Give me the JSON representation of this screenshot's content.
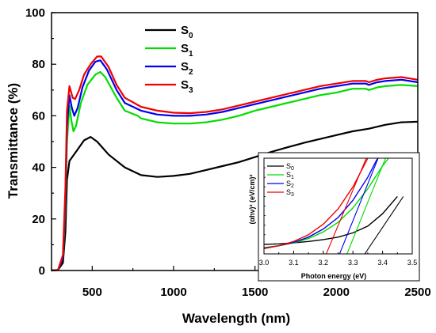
{
  "chart_data": [
    {
      "type": "line",
      "xlabel": "Wavelength (nm)",
      "ylabel": "Transmittance (%)",
      "xlim": [
        250,
        2500
      ],
      "ylim": [
        0,
        100
      ],
      "x_ticks": [
        500,
        1000,
        1500,
        2000,
        2500
      ],
      "y_ticks": [
        0,
        20,
        40,
        60,
        80,
        100
      ],
      "grid": false,
      "legend_position": "top-left",
      "series": [
        {
          "name": "S0",
          "legend_base": "S",
          "legend_sub": "0",
          "color": "#000000",
          "points": [
            [
              250,
              0
            ],
            [
              290,
              0.2
            ],
            [
              320,
              3
            ],
            [
              335,
              15
            ],
            [
              345,
              35
            ],
            [
              360,
              42.5
            ],
            [
              400,
              46
            ],
            [
              450,
              50.5
            ],
            [
              490,
              51.8
            ],
            [
              530,
              50
            ],
            [
              600,
              45
            ],
            [
              700,
              40
            ],
            [
              800,
              37
            ],
            [
              900,
              36.3
            ],
            [
              1000,
              36.7
            ],
            [
              1100,
              37.5
            ],
            [
              1200,
              39
            ],
            [
              1300,
              40.5
            ],
            [
              1400,
              42
            ],
            [
              1500,
              44
            ],
            [
              1600,
              46
            ],
            [
              1700,
              47.8
            ],
            [
              1800,
              49.5
            ],
            [
              1900,
              51
            ],
            [
              2000,
              52.5
            ],
            [
              2100,
              54
            ],
            [
              2200,
              55
            ],
            [
              2300,
              56.5
            ],
            [
              2400,
              57.5
            ],
            [
              2500,
              57.7
            ]
          ]
        },
        {
          "name": "S1",
          "legend_base": "S",
          "legend_sub": "1",
          "color": "#00dd00",
          "points": [
            [
              250,
              0
            ],
            [
              290,
              0.2
            ],
            [
              320,
              5
            ],
            [
              335,
              25
            ],
            [
              345,
              50
            ],
            [
              360,
              64
            ],
            [
              372,
              58
            ],
            [
              385,
              54
            ],
            [
              400,
              56
            ],
            [
              430,
              65
            ],
            [
              470,
              72
            ],
            [
              520,
              76
            ],
            [
              550,
              77
            ],
            [
              580,
              75
            ],
            [
              650,
              67
            ],
            [
              700,
              62
            ],
            [
              780,
              60
            ],
            [
              800,
              59
            ],
            [
              900,
              57.5
            ],
            [
              1000,
              57
            ],
            [
              1100,
              57
            ],
            [
              1200,
              57.5
            ],
            [
              1300,
              58.5
            ],
            [
              1400,
              60
            ],
            [
              1500,
              62
            ],
            [
              1600,
              63.5
            ],
            [
              1700,
              65
            ],
            [
              1800,
              66.5
            ],
            [
              1900,
              68
            ],
            [
              2000,
              69
            ],
            [
              2100,
              70.5
            ],
            [
              2180,
              70.5
            ],
            [
              2200,
              70
            ],
            [
              2250,
              71
            ],
            [
              2300,
              71.5
            ],
            [
              2400,
              72
            ],
            [
              2500,
              71.5
            ]
          ]
        },
        {
          "name": "S2",
          "legend_base": "S",
          "legend_sub": "2",
          "color": "#0000ee",
          "points": [
            [
              250,
              0
            ],
            [
              290,
              0.2
            ],
            [
              320,
              5
            ],
            [
              335,
              28
            ],
            [
              345,
              56
            ],
            [
              360,
              68
            ],
            [
              375,
              63
            ],
            [
              390,
              60
            ],
            [
              410,
              63
            ],
            [
              440,
              71
            ],
            [
              480,
              77.5
            ],
            [
              520,
              81
            ],
            [
              550,
              81.5
            ],
            [
              590,
              78
            ],
            [
              650,
              70
            ],
            [
              700,
              65
            ],
            [
              800,
              62
            ],
            [
              900,
              60.5
            ],
            [
              1000,
              60
            ],
            [
              1100,
              60
            ],
            [
              1200,
              60.5
            ],
            [
              1300,
              61.5
            ],
            [
              1400,
              63
            ],
            [
              1500,
              64.5
            ],
            [
              1600,
              66
            ],
            [
              1700,
              67.5
            ],
            [
              1800,
              69
            ],
            [
              1900,
              70.5
            ],
            [
              2000,
              71.5
            ],
            [
              2100,
              72.5
            ],
            [
              2180,
              72.5
            ],
            [
              2200,
              72
            ],
            [
              2250,
              73
            ],
            [
              2300,
              73.5
            ],
            [
              2400,
              74
            ],
            [
              2500,
              73
            ]
          ]
        },
        {
          "name": "S3",
          "legend_base": "S",
          "legend_sub": "3",
          "color": "#ee0000",
          "points": [
            [
              250,
              0
            ],
            [
              290,
              0.2
            ],
            [
              320,
              6
            ],
            [
              335,
              32
            ],
            [
              345,
              62
            ],
            [
              360,
              71.5
            ],
            [
              380,
              67
            ],
            [
              395,
              66.5
            ],
            [
              420,
              70
            ],
            [
              450,
              76
            ],
            [
              490,
              80
            ],
            [
              530,
              83
            ],
            [
              555,
              83
            ],
            [
              600,
              79
            ],
            [
              650,
              72
            ],
            [
              700,
              67
            ],
            [
              800,
              63.5
            ],
            [
              900,
              62
            ],
            [
              1000,
              61.2
            ],
            [
              1100,
              61
            ],
            [
              1200,
              61.5
            ],
            [
              1300,
              62.5
            ],
            [
              1400,
              64
            ],
            [
              1500,
              65.5
            ],
            [
              1600,
              67
            ],
            [
              1700,
              68.5
            ],
            [
              1800,
              70
            ],
            [
              1900,
              71.5
            ],
            [
              2000,
              72.5
            ],
            [
              2100,
              73.5
            ],
            [
              2180,
              73.5
            ],
            [
              2200,
              73
            ],
            [
              2250,
              74
            ],
            [
              2300,
              74.5
            ],
            [
              2400,
              75
            ],
            [
              2500,
              74
            ]
          ]
        }
      ]
    },
    {
      "type": "line",
      "xlabel": "Photon energy (eV)",
      "ylabel": "(αhν)² (eV/cm)²",
      "xlim": [
        3.0,
        3.5
      ],
      "ylim": [
        0,
        1
      ],
      "x_ticks": [
        3.0,
        3.1,
        3.2,
        3.3,
        3.4,
        3.5
      ],
      "y_ticks_labeled": false,
      "grid": false,
      "legend_position": "top-left",
      "series": [
        {
          "name": "S0",
          "legend_base": "S",
          "legend_sub": "0",
          "color": "#000000",
          "curve": [
            [
              3.0,
              0.1
            ],
            [
              3.05,
              0.105
            ],
            [
              3.1,
              0.115
            ],
            [
              3.15,
              0.13
            ],
            [
              3.2,
              0.15
            ],
            [
              3.25,
              0.175
            ],
            [
              3.3,
              0.22
            ],
            [
              3.35,
              0.29
            ],
            [
              3.4,
              0.42
            ],
            [
              3.45,
              0.6
            ]
          ],
          "tangent": [
            [
              3.34,
              0.0
            ],
            [
              3.47,
              0.6
            ]
          ]
        },
        {
          "name": "S1",
          "legend_base": "S",
          "legend_sub": "1",
          "color": "#00dd00",
          "curve": [
            [
              3.0,
              0.065
            ],
            [
              3.05,
              0.085
            ],
            [
              3.1,
              0.115
            ],
            [
              3.15,
              0.16
            ],
            [
              3.2,
              0.23
            ],
            [
              3.25,
              0.33
            ],
            [
              3.3,
              0.48
            ],
            [
              3.35,
              0.68
            ],
            [
              3.4,
              0.92
            ],
            [
              3.42,
              1.0
            ]
          ],
          "tangent": [
            [
              3.28,
              0.0
            ],
            [
              3.41,
              1.0
            ]
          ]
        },
        {
          "name": "S2",
          "legend_base": "S",
          "legend_sub": "2",
          "color": "#0000ee",
          "curve": [
            [
              3.0,
              0.06
            ],
            [
              3.05,
              0.085
            ],
            [
              3.1,
              0.12
            ],
            [
              3.15,
              0.175
            ],
            [
              3.2,
              0.26
            ],
            [
              3.25,
              0.38
            ],
            [
              3.3,
              0.56
            ],
            [
              3.35,
              0.8
            ],
            [
              3.38,
              0.98
            ],
            [
              3.385,
              1.0
            ]
          ],
          "tangent": [
            [
              3.255,
              0.0
            ],
            [
              3.385,
              1.0
            ]
          ]
        },
        {
          "name": "S3",
          "legend_base": "S",
          "legend_sub": "3",
          "color": "#ee0000",
          "curve": [
            [
              3.0,
              0.055
            ],
            [
              3.05,
              0.085
            ],
            [
              3.1,
              0.13
            ],
            [
              3.15,
              0.2
            ],
            [
              3.2,
              0.31
            ],
            [
              3.25,
              0.47
            ],
            [
              3.3,
              0.7
            ],
            [
              3.34,
              0.94
            ],
            [
              3.35,
              1.0
            ]
          ],
          "tangent": [
            [
              3.21,
              0.0
            ],
            [
              3.345,
              1.0
            ]
          ]
        }
      ]
    }
  ]
}
